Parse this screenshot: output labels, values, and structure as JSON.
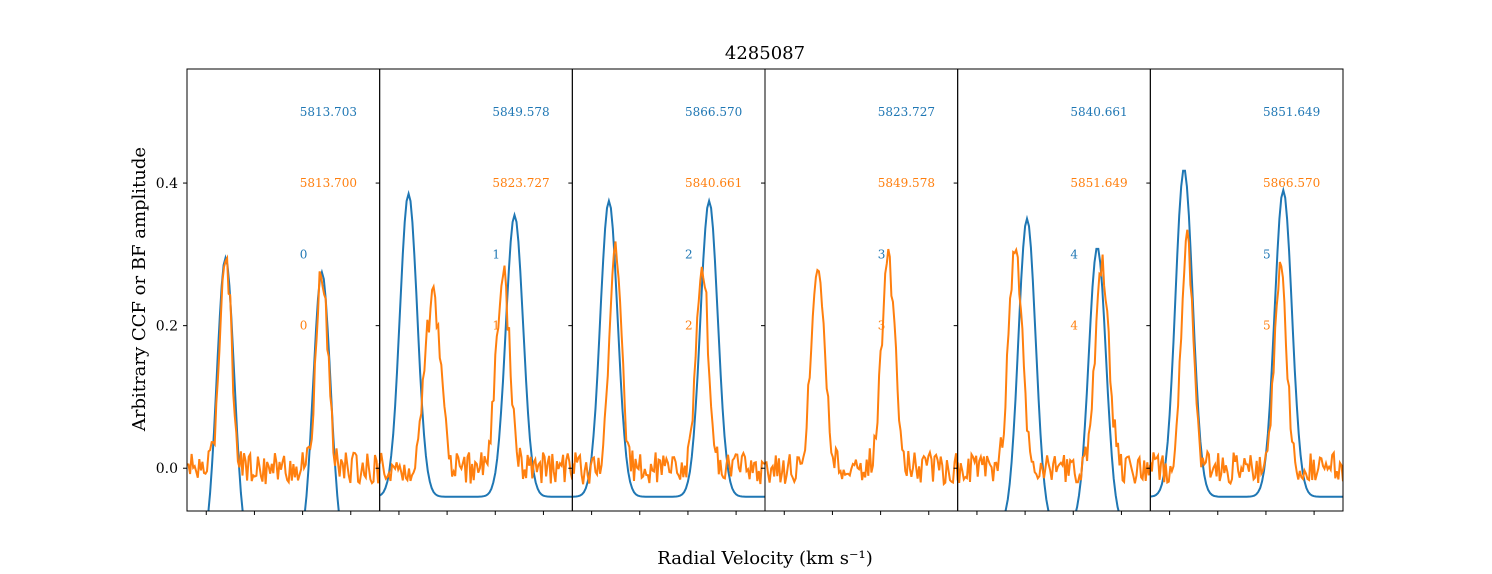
{
  "chart_data": {
    "type": "line",
    "title": "4285087",
    "xlabel": "Radial Velocity (km s⁻¹)",
    "ylabel": "Arbitrary CCF or BF amplitude",
    "ylim": [
      -0.06,
      0.56
    ],
    "yticks": [
      0.0,
      0.2,
      0.4
    ],
    "ytick_labels": [
      "0.0",
      "0.2",
      "0.4"
    ],
    "xlim": [
      -100,
      100
    ],
    "xticks": [
      -80,
      -30,
      20,
      70
    ],
    "grid": false,
    "colors": {
      "blue": "#1f77b4",
      "orange": "#ff7f0e"
    },
    "panels": [
      {
        "annotations": {
          "blue_date": "5813.703",
          "orange_date": "5813.700",
          "blue_index": "0",
          "orange_index": "0"
        },
        "blue": {
          "peaks": [
            [
              -60,
              0.295,
              9
            ],
            [
              40,
              0.275,
              9
            ]
          ],
          "base": -0.12
        },
        "orange": {
          "peaks": [
            [
              -60,
              0.305,
              6
            ],
            [
              40,
              0.275,
              6
            ]
          ],
          "base": 0.0
        }
      },
      {
        "annotations": {
          "blue_date": "5849.578",
          "orange_date": "5823.727",
          "blue_index": "1",
          "orange_index": "1"
        },
        "blue": {
          "peaks": [
            [
              -70,
              0.385,
              9
            ],
            [
              40,
              0.355,
              9
            ]
          ],
          "base": -0.04
        },
        "orange": {
          "peaks": [
            [
              -45,
              0.235,
              8
            ],
            [
              28,
              0.27,
              7
            ]
          ],
          "base": 0.0
        }
      },
      {
        "annotations": {
          "blue_date": "5866.570",
          "orange_date": "5840.661",
          "blue_index": "2",
          "orange_index": "2"
        },
        "blue": {
          "peaks": [
            [
              -62,
              0.375,
              9
            ],
            [
              42,
              0.375,
              9
            ]
          ],
          "base": -0.04
        },
        "orange": {
          "peaks": [
            [
              -55,
              0.3,
              6
            ],
            [
              35,
              0.29,
              6
            ]
          ],
          "base": 0.0
        }
      },
      {
        "annotations": {
          "blue_date": "5823.727",
          "orange_date": "5849.578",
          "blue_index": "3",
          "orange_index": "3"
        },
        "blue": {
          "peaks": [],
          "base": 0.0
        },
        "orange": {
          "peaks": [
            [
              -45,
              0.29,
              7
            ],
            [
              28,
              0.29,
              7
            ]
          ],
          "base": 0.0
        }
      },
      {
        "annotations": {
          "blue_date": "5840.661",
          "orange_date": "5851.649",
          "blue_index": "4",
          "orange_index": "4"
        },
        "blue": {
          "peaks": [
            [
              -28,
              0.35,
              9
            ],
            [
              45,
              0.31,
              9
            ]
          ],
          "base": -0.08
        },
        "orange": {
          "peaks": [
            [
              -40,
              0.3,
              7
            ],
            [
              50,
              0.28,
              7
            ]
          ],
          "base": 0.0
        }
      },
      {
        "annotations": {
          "blue_date": "5851.649",
          "orange_date": "5866.570",
          "blue_index": "5",
          "orange_index": "5"
        },
        "blue": {
          "peaks": [
            [
              -65,
              0.42,
              9
            ],
            [
              38,
              0.39,
              9
            ]
          ],
          "base": -0.04
        },
        "orange": {
          "peaks": [
            [
              -62,
              0.315,
              6
            ],
            [
              35,
              0.285,
              6
            ]
          ],
          "base": 0.0
        }
      }
    ]
  }
}
